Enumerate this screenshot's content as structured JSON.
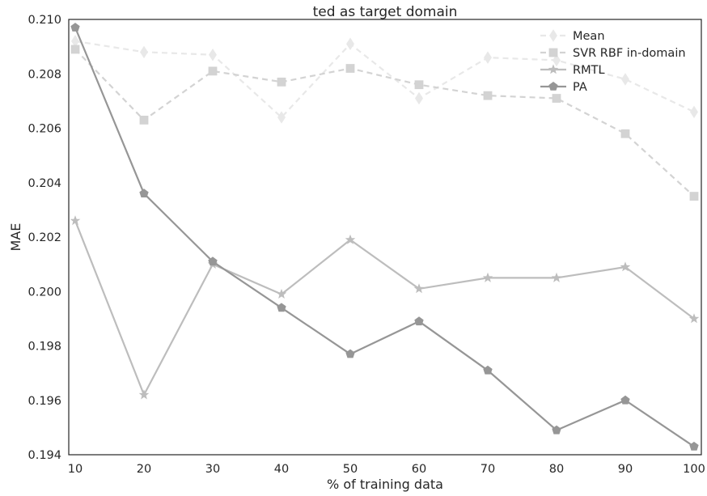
{
  "chart_data": {
    "type": "line",
    "title": "ted as target domain",
    "xlabel": "% of training data",
    "ylabel": "MAE",
    "x": [
      10,
      20,
      30,
      40,
      50,
      60,
      70,
      80,
      90,
      100
    ],
    "xlim": [
      10,
      100
    ],
    "ylim": [
      0.194,
      0.21
    ],
    "xticks": [
      "10",
      "20",
      "30",
      "40",
      "50",
      "60",
      "70",
      "80",
      "90",
      "100"
    ],
    "yticks": [
      "0.194",
      "0.196",
      "0.198",
      "0.200",
      "0.202",
      "0.204",
      "0.206",
      "0.208",
      "0.210"
    ],
    "grid": false,
    "legend_position": "top-right",
    "series": [
      {
        "name": "Mean",
        "values": [
          0.2092,
          0.2088,
          0.2087,
          0.2064,
          0.2091,
          0.2071,
          0.2086,
          0.2085,
          0.2078,
          0.2066
        ],
        "color": "#e8e8e8",
        "line_style": "dashed",
        "marker": "diamond"
      },
      {
        "name": "SVR RBF in-domain",
        "values": [
          0.2089,
          0.2063,
          0.2081,
          0.2077,
          0.2082,
          0.2076,
          0.2072,
          0.2071,
          0.2058,
          0.2035
        ],
        "color": "#d3d3d3",
        "line_style": "dashed",
        "marker": "square"
      },
      {
        "name": "RMTL",
        "values": [
          0.2026,
          0.1962,
          0.201,
          0.1999,
          0.2019,
          0.2001,
          0.2005,
          0.2005,
          0.2009,
          0.199
        ],
        "color": "#bdbdbd",
        "line_style": "solid",
        "marker": "star"
      },
      {
        "name": "PA",
        "values": [
          0.2097,
          0.2036,
          0.2011,
          0.1994,
          0.1977,
          0.1989,
          0.1971,
          0.1949,
          0.196,
          0.1943
        ],
        "color": "#969696",
        "line_style": "solid",
        "marker": "pentagon"
      }
    ]
  }
}
